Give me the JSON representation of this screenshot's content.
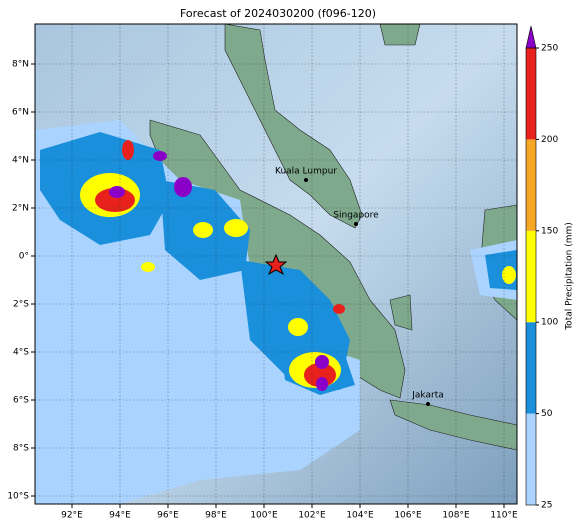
{
  "title": "Forecast of 2024030200 (f096-120)",
  "map": {
    "lon_ticks": [
      {
        "value": 92,
        "label": "92°E"
      },
      {
        "value": 94,
        "label": "94°E"
      },
      {
        "value": 96,
        "label": "96°E"
      },
      {
        "value": 98,
        "label": "98°E"
      },
      {
        "value": 100,
        "label": "100°E"
      },
      {
        "value": 102,
        "label": "102°E"
      },
      {
        "value": 104,
        "label": "104°E"
      },
      {
        "value": 106,
        "label": "106°E"
      },
      {
        "value": 108,
        "label": "108°E"
      },
      {
        "value": 110,
        "label": "110°E"
      }
    ],
    "lat_ticks": [
      {
        "value": 8,
        "label": "8°N"
      },
      {
        "value": 6,
        "label": "6°N"
      },
      {
        "value": 4,
        "label": "4°N"
      },
      {
        "value": 2,
        "label": "2°N"
      },
      {
        "value": 0,
        "label": "0°"
      },
      {
        "value": -2,
        "label": "2°S"
      },
      {
        "value": -4,
        "label": "4°S"
      },
      {
        "value": -6,
        "label": "6°S"
      },
      {
        "value": -8,
        "label": "8°S"
      },
      {
        "value": -10,
        "label": "10°S"
      }
    ],
    "places": [
      "Kuala Lumpur",
      "Singapore",
      "Jakarta"
    ]
  },
  "colorbar": {
    "label": "Total Precipitation (mm)",
    "ticks": [
      25,
      50,
      100,
      150,
      200,
      250
    ],
    "colors": [
      "#aad4ff",
      "#1a90dc",
      "#ffff00",
      "#f5a623",
      "#e8211c"
    ],
    "extend_color": "#8b00c8"
  }
}
